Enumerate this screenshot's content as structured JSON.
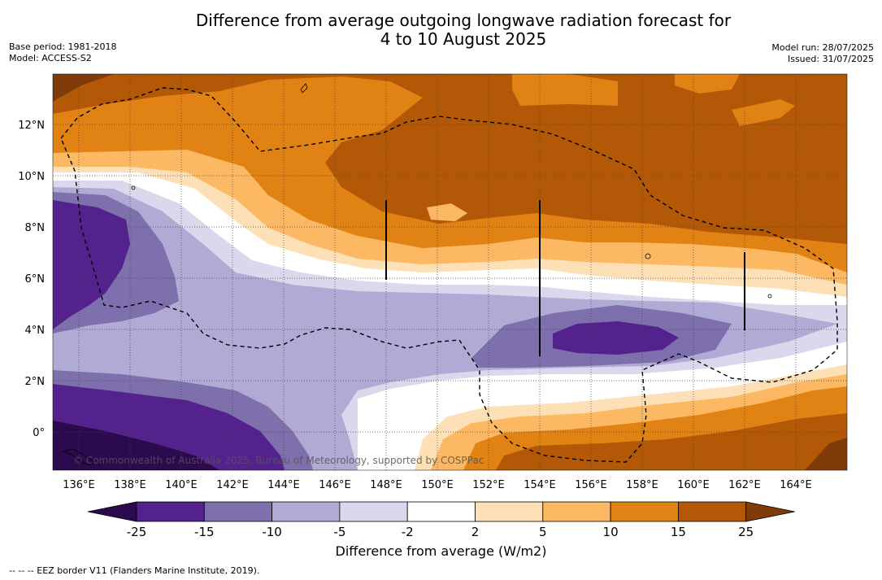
{
  "title_line1": "Difference from average outgoing longwave radiation forecast for",
  "title_line2": "4 to 10 August 2025",
  "base_period": "Base period: 1981-2018",
  "model": "Model: ACCESS-S2",
  "model_run": "Model run: 28/07/2025",
  "issued": "Issued: 31/07/2025",
  "credit": "© Commonwealth of Australia 2025, Bureau of Meteorology, supported by COSPPac",
  "lat_labels": [
    "12°N",
    "10°N",
    "8°N",
    "6°N",
    "4°N",
    "2°N",
    "0°"
  ],
  "lon_labels": [
    "136°E",
    "138°E",
    "140°E",
    "142°E",
    "144°E",
    "146°E",
    "148°E",
    "150°E",
    "152°E",
    "154°E",
    "156°E",
    "158°E",
    "160°E",
    "162°E",
    "164°E"
  ],
  "colorbar": {
    "ticks": [
      "-25",
      "-15",
      "-10",
      "-5",
      "-2",
      "2",
      "5",
      "10",
      "15",
      "25"
    ],
    "colors": [
      "#2b0a4d",
      "#54228c",
      "#7e70ad",
      "#b0abd4",
      "#d9d8ec",
      "#ffffff",
      "#fee0b6",
      "#fdb863",
      "#e08214",
      "#b35806",
      "#7f3b08"
    ],
    "label": "Difference from average (W/m2)"
  },
  "footnote": "-- -- -- EEZ border V11 (Flanders Marine Institute, 2019)."
}
